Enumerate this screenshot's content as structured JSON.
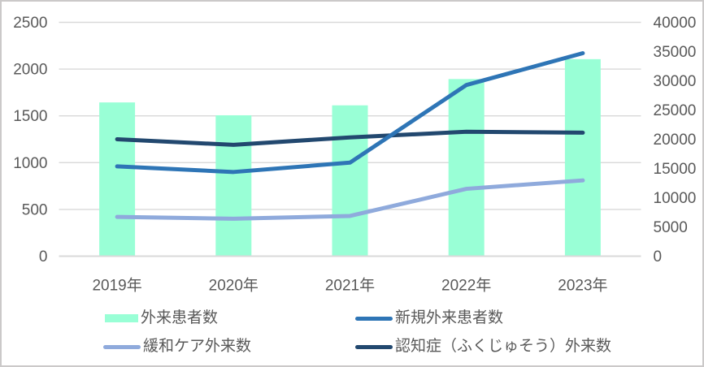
{
  "chart_data": {
    "type": "combo",
    "title": "",
    "categories": [
      "2019年",
      "2020年",
      "2021年",
      "2022年",
      "2023年"
    ],
    "series": [
      {
        "name": "外来患者数",
        "type": "bar",
        "axis": "right",
        "color": "#99FFD6",
        "values": [
          26300,
          24100,
          25800,
          30300,
          33700
        ]
      },
      {
        "name": "新規外来患者数",
        "type": "line",
        "axis": "left",
        "color": "#2E75B6",
        "values": [
          960,
          900,
          1000,
          1830,
          2170
        ]
      },
      {
        "name": "緩和ケア外来数",
        "type": "line",
        "axis": "left",
        "color": "#8FAADC",
        "values": [
          420,
          400,
          430,
          720,
          810
        ]
      },
      {
        "name": "認知症（ふくじゅそう）外来数",
        "type": "line",
        "axis": "left",
        "color": "#22486F",
        "values": [
          1250,
          1190,
          1270,
          1330,
          1320
        ]
      }
    ],
    "left_axis": {
      "min": 0,
      "max": 2500,
      "step": 500,
      "ticks": [
        "0",
        "500",
        "1000",
        "1500",
        "2000",
        "2500"
      ]
    },
    "right_axis": {
      "min": 0,
      "max": 40000,
      "step": 5000,
      "ticks": [
        "0",
        "5000",
        "10000",
        "15000",
        "20000",
        "25000",
        "30000",
        "35000",
        "40000"
      ]
    },
    "grid": true,
    "legend_position": "bottom",
    "colors": {
      "gridline": "#D9D9D9",
      "axis_line": "#D9D9D9",
      "axis_text": "#595959",
      "frame_border": "#CBC9C9",
      "background": "#FFFFFF"
    }
  }
}
